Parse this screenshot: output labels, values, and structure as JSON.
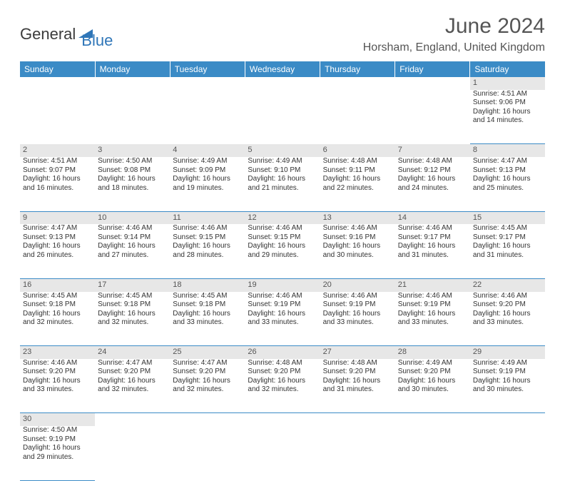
{
  "logo": {
    "dark": "General",
    "blue": "Blue"
  },
  "title": "June 2024",
  "location": "Horsham, England, United Kingdom",
  "headers": [
    "Sunday",
    "Monday",
    "Tuesday",
    "Wednesday",
    "Thursday",
    "Friday",
    "Saturday"
  ],
  "colors": {
    "header_bg": "#3b8bc6",
    "daynum_bg": "#e7e7e7",
    "border": "#3b8bc6"
  },
  "weeks": [
    [
      null,
      null,
      null,
      null,
      null,
      null,
      {
        "n": "1",
        "sr": "4:51 AM",
        "ss": "9:06 PM",
        "dl": "16 hours and 14 minutes."
      }
    ],
    [
      {
        "n": "2",
        "sr": "4:51 AM",
        "ss": "9:07 PM",
        "dl": "16 hours and 16 minutes."
      },
      {
        "n": "3",
        "sr": "4:50 AM",
        "ss": "9:08 PM",
        "dl": "16 hours and 18 minutes."
      },
      {
        "n": "4",
        "sr": "4:49 AM",
        "ss": "9:09 PM",
        "dl": "16 hours and 19 minutes."
      },
      {
        "n": "5",
        "sr": "4:49 AM",
        "ss": "9:10 PM",
        "dl": "16 hours and 21 minutes."
      },
      {
        "n": "6",
        "sr": "4:48 AM",
        "ss": "9:11 PM",
        "dl": "16 hours and 22 minutes."
      },
      {
        "n": "7",
        "sr": "4:48 AM",
        "ss": "9:12 PM",
        "dl": "16 hours and 24 minutes."
      },
      {
        "n": "8",
        "sr": "4:47 AM",
        "ss": "9:13 PM",
        "dl": "16 hours and 25 minutes."
      }
    ],
    [
      {
        "n": "9",
        "sr": "4:47 AM",
        "ss": "9:13 PM",
        "dl": "16 hours and 26 minutes."
      },
      {
        "n": "10",
        "sr": "4:46 AM",
        "ss": "9:14 PM",
        "dl": "16 hours and 27 minutes."
      },
      {
        "n": "11",
        "sr": "4:46 AM",
        "ss": "9:15 PM",
        "dl": "16 hours and 28 minutes."
      },
      {
        "n": "12",
        "sr": "4:46 AM",
        "ss": "9:15 PM",
        "dl": "16 hours and 29 minutes."
      },
      {
        "n": "13",
        "sr": "4:46 AM",
        "ss": "9:16 PM",
        "dl": "16 hours and 30 minutes."
      },
      {
        "n": "14",
        "sr": "4:46 AM",
        "ss": "9:17 PM",
        "dl": "16 hours and 31 minutes."
      },
      {
        "n": "15",
        "sr": "4:45 AM",
        "ss": "9:17 PM",
        "dl": "16 hours and 31 minutes."
      }
    ],
    [
      {
        "n": "16",
        "sr": "4:45 AM",
        "ss": "9:18 PM",
        "dl": "16 hours and 32 minutes."
      },
      {
        "n": "17",
        "sr": "4:45 AM",
        "ss": "9:18 PM",
        "dl": "16 hours and 32 minutes."
      },
      {
        "n": "18",
        "sr": "4:45 AM",
        "ss": "9:18 PM",
        "dl": "16 hours and 33 minutes."
      },
      {
        "n": "19",
        "sr": "4:46 AM",
        "ss": "9:19 PM",
        "dl": "16 hours and 33 minutes."
      },
      {
        "n": "20",
        "sr": "4:46 AM",
        "ss": "9:19 PM",
        "dl": "16 hours and 33 minutes."
      },
      {
        "n": "21",
        "sr": "4:46 AM",
        "ss": "9:19 PM",
        "dl": "16 hours and 33 minutes."
      },
      {
        "n": "22",
        "sr": "4:46 AM",
        "ss": "9:20 PM",
        "dl": "16 hours and 33 minutes."
      }
    ],
    [
      {
        "n": "23",
        "sr": "4:46 AM",
        "ss": "9:20 PM",
        "dl": "16 hours and 33 minutes."
      },
      {
        "n": "24",
        "sr": "4:47 AM",
        "ss": "9:20 PM",
        "dl": "16 hours and 32 minutes."
      },
      {
        "n": "25",
        "sr": "4:47 AM",
        "ss": "9:20 PM",
        "dl": "16 hours and 32 minutes."
      },
      {
        "n": "26",
        "sr": "4:48 AM",
        "ss": "9:20 PM",
        "dl": "16 hours and 32 minutes."
      },
      {
        "n": "27",
        "sr": "4:48 AM",
        "ss": "9:20 PM",
        "dl": "16 hours and 31 minutes."
      },
      {
        "n": "28",
        "sr": "4:49 AM",
        "ss": "9:20 PM",
        "dl": "16 hours and 30 minutes."
      },
      {
        "n": "29",
        "sr": "4:49 AM",
        "ss": "9:19 PM",
        "dl": "16 hours and 30 minutes."
      }
    ],
    [
      {
        "n": "30",
        "sr": "4:50 AM",
        "ss": "9:19 PM",
        "dl": "16 hours and 29 minutes."
      },
      null,
      null,
      null,
      null,
      null,
      null
    ]
  ]
}
